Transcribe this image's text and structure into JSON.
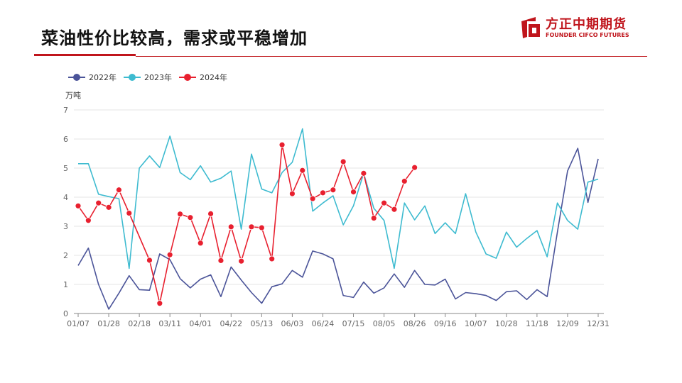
{
  "header": {
    "title": "菜油性价比较高，需求或平稳增加",
    "logo_cn": "方正中期期货",
    "logo_en": "FOUNDER CIFCO FUTURES",
    "accent_color": "#c0151c"
  },
  "chart_data": {
    "type": "line",
    "ylabel": "万吨",
    "ylim": [
      0,
      7
    ],
    "yticks": [
      0,
      1,
      2,
      3,
      4,
      5,
      6,
      7
    ],
    "xlim": [
      0,
      51
    ],
    "x_tick_labels": [
      "01/07",
      "01/28",
      "02/18",
      "03/11",
      "04/01",
      "04/22",
      "05/13",
      "06/03",
      "06/24",
      "07/15",
      "08/05",
      "08/26",
      "09/16",
      "10/07",
      "10/28",
      "11/18",
      "12/09",
      "12/31"
    ],
    "x_tick_weeks": [
      0,
      3,
      6,
      9,
      12,
      15,
      18,
      21,
      24,
      27,
      30,
      33,
      36,
      39,
      42,
      45,
      48,
      51
    ],
    "grid": true,
    "legend_position": "top-left",
    "series": [
      {
        "name": "2022年",
        "color": "#4b5499",
        "marker": false,
        "x": [
          0,
          1,
          2,
          3,
          4,
          5,
          6,
          7,
          8,
          9,
          10,
          11,
          12,
          13,
          14,
          15,
          16,
          17,
          18,
          19,
          20,
          21,
          22,
          23,
          24,
          25,
          26,
          27,
          28,
          29,
          30,
          31,
          32,
          33,
          34,
          35,
          36,
          37,
          38,
          39,
          40,
          41,
          42,
          43,
          44,
          45,
          46,
          47,
          48,
          49,
          50,
          51
        ],
        "values": [
          1.65,
          2.25,
          1.0,
          0.15,
          0.7,
          1.3,
          0.82,
          0.8,
          2.05,
          1.85,
          1.2,
          0.88,
          1.18,
          1.33,
          0.58,
          1.6,
          1.15,
          0.72,
          0.35,
          0.92,
          1.02,
          1.48,
          1.25,
          2.15,
          2.05,
          1.88,
          0.62,
          0.55,
          1.08,
          0.7,
          0.88,
          1.36,
          0.9,
          1.48,
          1.0,
          0.98,
          1.18,
          0.5,
          0.72,
          0.68,
          0.62,
          0.45,
          0.75,
          0.78,
          0.48,
          0.82,
          0.58,
          2.8,
          4.9,
          5.68,
          3.82,
          5.32
        ]
      },
      {
        "name": "2023年",
        "color": "#3ebbd0",
        "marker": false,
        "x": [
          0,
          1,
          2,
          3,
          4,
          5,
          6,
          7,
          8,
          9,
          10,
          11,
          12,
          13,
          14,
          15,
          16,
          17,
          18,
          19,
          20,
          21,
          22,
          23,
          24,
          25,
          26,
          27,
          28,
          29,
          30,
          31,
          32,
          33,
          34,
          35,
          36,
          37,
          38,
          39,
          40,
          41,
          42,
          43,
          44,
          45,
          46,
          47,
          48,
          49,
          50,
          51
        ],
        "values": [
          5.15,
          5.15,
          4.1,
          4.02,
          3.95,
          1.55,
          5.0,
          5.42,
          5.02,
          6.1,
          4.85,
          4.6,
          5.08,
          4.52,
          4.65,
          4.9,
          2.9,
          5.48,
          4.28,
          4.15,
          4.85,
          5.2,
          6.35,
          3.52,
          3.8,
          4.05,
          3.05,
          3.7,
          4.82,
          3.62,
          3.2,
          1.55,
          3.8,
          3.22,
          3.7,
          2.75,
          3.12,
          2.75,
          4.12,
          2.8,
          2.05,
          1.9,
          2.8,
          2.28,
          2.58,
          2.85,
          1.95,
          3.8,
          3.2,
          2.9,
          4.52,
          4.62
        ]
      },
      {
        "name": "2024年",
        "color": "#e8202f",
        "marker": true,
        "x": [
          0,
          1,
          2,
          3,
          4,
          5,
          7,
          8,
          9,
          10,
          11,
          12,
          13,
          14,
          15,
          16,
          17,
          18,
          19,
          20,
          21,
          22,
          23,
          24,
          25,
          26,
          27,
          28,
          29,
          30,
          31,
          32,
          33
        ],
        "values": [
          3.7,
          3.2,
          3.8,
          3.65,
          4.25,
          3.45,
          1.83,
          0.35,
          2.02,
          3.42,
          3.3,
          2.42,
          3.43,
          1.82,
          2.98,
          1.8,
          2.98,
          2.95,
          1.88,
          5.8,
          4.12,
          4.92,
          3.95,
          4.15,
          4.25,
          5.22,
          4.18,
          4.82,
          3.28,
          3.8,
          3.58,
          4.55,
          5.02
        ]
      }
    ]
  }
}
